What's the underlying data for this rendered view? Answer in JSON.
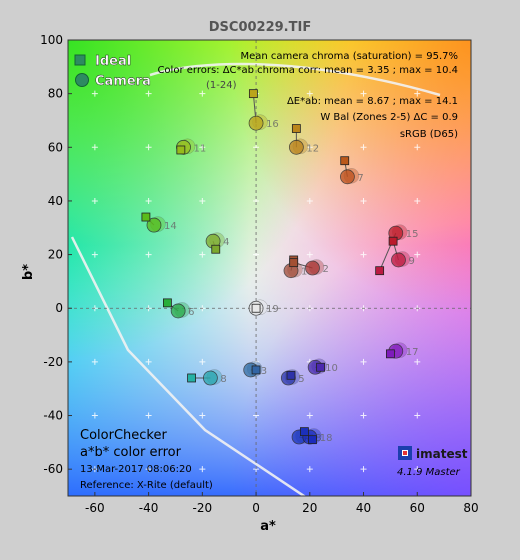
{
  "chart_data": {
    "type": "scatter",
    "title": "DSC00229.TIF",
    "xlabel": "a*",
    "ylabel": "b*",
    "xlim": [
      -70,
      80
    ],
    "ylim": [
      -70,
      100
    ],
    "x_ticks": [
      "-60",
      "-40",
      "-20",
      "0",
      "20",
      "40",
      "60",
      "80"
    ],
    "y_ticks": [
      "-60",
      "-40",
      "-20",
      "0",
      "20",
      "40",
      "60",
      "80",
      "100"
    ],
    "grid": true,
    "legend": [
      {
        "label": "Ideal",
        "marker": "square"
      },
      {
        "label": "Camera",
        "marker": "circle"
      }
    ],
    "stats": [
      "Mean camera chroma (saturation) = 95.7%",
      "Color errors: ΔC*ab chroma corr: mean = 3.35 ; max = 10.4",
      "(1-24)",
      "ΔE*ab: mean = 8.67 ; max = 14.1",
      "W Bal (Zones 2-5) ΔC = 0.9",
      "sRGB (D65)"
    ],
    "panel_title": "ColorChecker",
    "panel_subtitle": "a*b* color error",
    "date": "13-Mar-2017 08:06:20",
    "reference": "Reference: X-Rite (default)",
    "brand": "imatest",
    "version": "4.1.9  Master",
    "series": [
      {
        "name": "Ideal",
        "points": [
          {
            "id": "1",
            "x": 14,
            "y": 18
          },
          {
            "id": "2",
            "x": 14,
            "y": 17
          },
          {
            "id": "3",
            "x": 0,
            "y": -23
          },
          {
            "id": "4",
            "x": -15,
            "y": 22
          },
          {
            "id": "5",
            "x": 13,
            "y": -25
          },
          {
            "id": "6",
            "x": -33,
            "y": 2
          },
          {
            "id": "7",
            "x": 33,
            "y": 55
          },
          {
            "id": "8",
            "x": -24,
            "y": -26
          },
          {
            "id": "9",
            "x": 51,
            "y": 25
          },
          {
            "id": "10",
            "x": 24,
            "y": -22
          },
          {
            "id": "11",
            "x": -28,
            "y": 59
          },
          {
            "id": "12",
            "x": 15,
            "y": 67
          },
          {
            "id": "13",
            "x": 21,
            "y": -49
          },
          {
            "id": "14",
            "x": -41,
            "y": 34
          },
          {
            "id": "15",
            "x": 46,
            "y": 14
          },
          {
            "id": "16",
            "x": -1,
            "y": 80
          },
          {
            "id": "17",
            "x": 50,
            "y": -17
          },
          {
            "id": "18",
            "x": 18,
            "y": -46
          },
          {
            "id": "19",
            "x": 0,
            "y": 0
          }
        ]
      },
      {
        "name": "Camera",
        "points": [
          {
            "id": "1",
            "x": 13,
            "y": 14
          },
          {
            "id": "2",
            "x": 21,
            "y": 15
          },
          {
            "id": "3",
            "x": -2,
            "y": -23
          },
          {
            "id": "4",
            "x": -16,
            "y": 25
          },
          {
            "id": "5",
            "x": 12,
            "y": -26
          },
          {
            "id": "6",
            "x": -29,
            "y": -1
          },
          {
            "id": "7",
            "x": 34,
            "y": 49
          },
          {
            "id": "8",
            "x": -17,
            "y": -26
          },
          {
            "id": "9",
            "x": 53,
            "y": 18
          },
          {
            "id": "10",
            "x": 22,
            "y": -22
          },
          {
            "id": "11",
            "x": -27,
            "y": 60
          },
          {
            "id": "12",
            "x": 15,
            "y": 60
          },
          {
            "id": "13",
            "x": 16,
            "y": -48
          },
          {
            "id": "14",
            "x": -38,
            "y": 31
          },
          {
            "id": "15",
            "x": 52,
            "y": 28
          },
          {
            "id": "16",
            "x": 0,
            "y": 69
          },
          {
            "id": "17",
            "x": 52,
            "y": -16
          },
          {
            "id": "18",
            "x": 20,
            "y": -48
          },
          {
            "id": "19",
            "x": 0,
            "y": 0
          }
        ]
      }
    ]
  }
}
